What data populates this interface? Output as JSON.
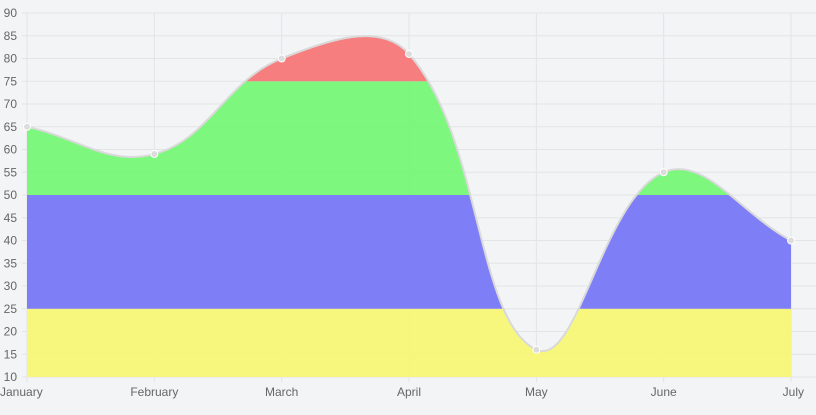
{
  "chart_data": {
    "type": "area",
    "title": "",
    "xlabel": "",
    "ylabel": "",
    "categories": [
      "January",
      "February",
      "March",
      "April",
      "May",
      "June",
      "July"
    ],
    "values": [
      65,
      59,
      80,
      81,
      16,
      55,
      40
    ],
    "ylim": [
      10,
      90
    ],
    "ystep": 5,
    "grid": true,
    "legend": "none",
    "curve_tension": 0.4,
    "bands": [
      {
        "from": 10,
        "to": 25,
        "color": "#f7f777"
      },
      {
        "from": 25,
        "to": 50,
        "color": "#7777f7"
      },
      {
        "from": 50,
        "to": 75,
        "color": "#77f777"
      },
      {
        "from": 75,
        "to": 90,
        "color": "#f77777"
      }
    ],
    "line_color": "#d9d9d9",
    "point_color": "#dcdcdc",
    "grid_color": "#e3e4e6"
  }
}
